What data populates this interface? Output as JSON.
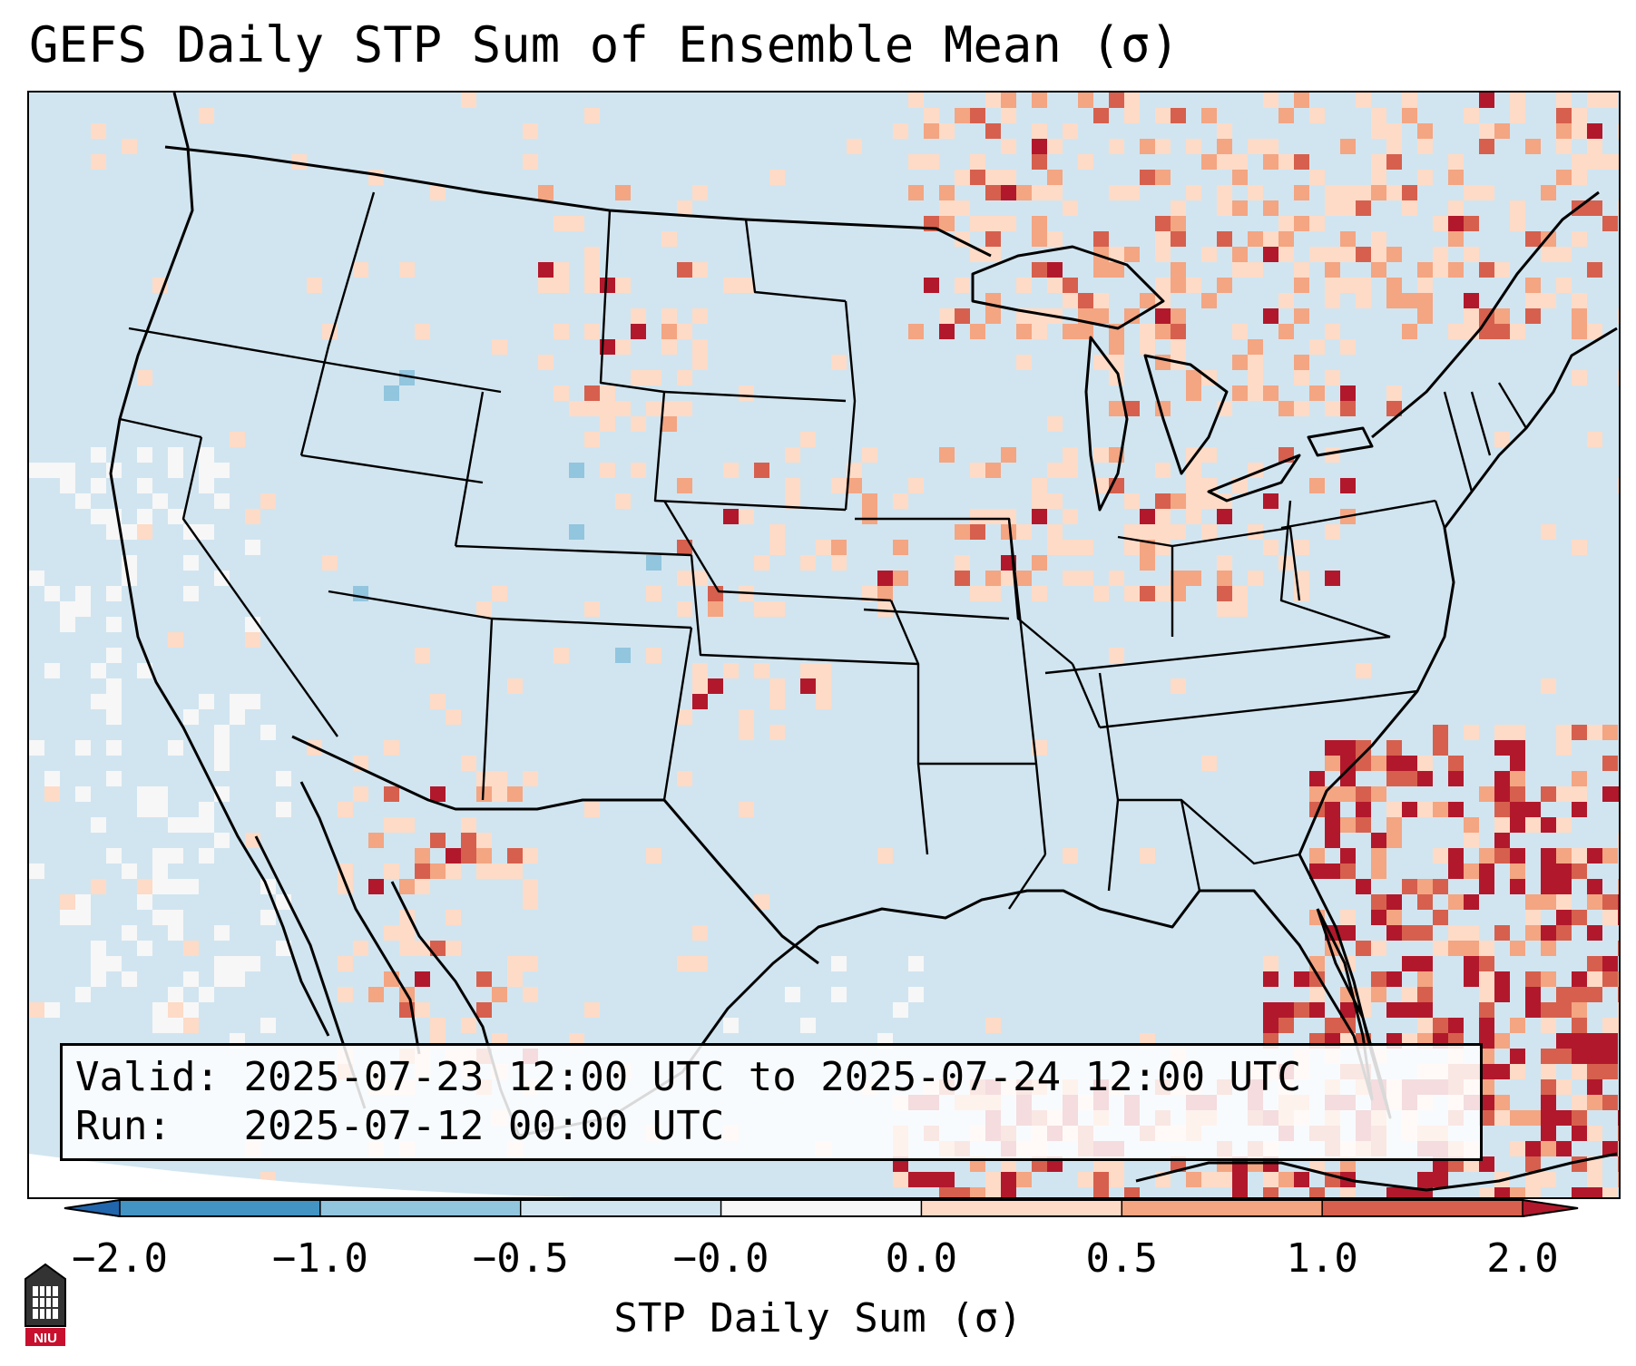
{
  "title": "GEFS Daily STP Sum of Ensemble Mean (σ)",
  "info": {
    "valid_label": "Valid:",
    "valid_value": "2025-07-23 12:00 UTC to 2025-07-24 12:00 UTC",
    "run_label": "Run:",
    "run_value": "2025-07-12 00:00 UTC"
  },
  "colorbar": {
    "label": "STP Daily Sum (σ)",
    "ticks": [
      "−2.0",
      "−1.0",
      "−0.5",
      "−0.0",
      "0.0",
      "0.5",
      "1.0",
      "2.0"
    ],
    "colors": [
      "#2166ac",
      "#4393c3",
      "#92c5de",
      "#d1e5f0",
      "#f7f7f7",
      "#fddbc7",
      "#f4a582",
      "#d6604d",
      "#b2182b"
    ]
  },
  "logo": {
    "text": "NIU",
    "name": "niu-logo"
  }
}
